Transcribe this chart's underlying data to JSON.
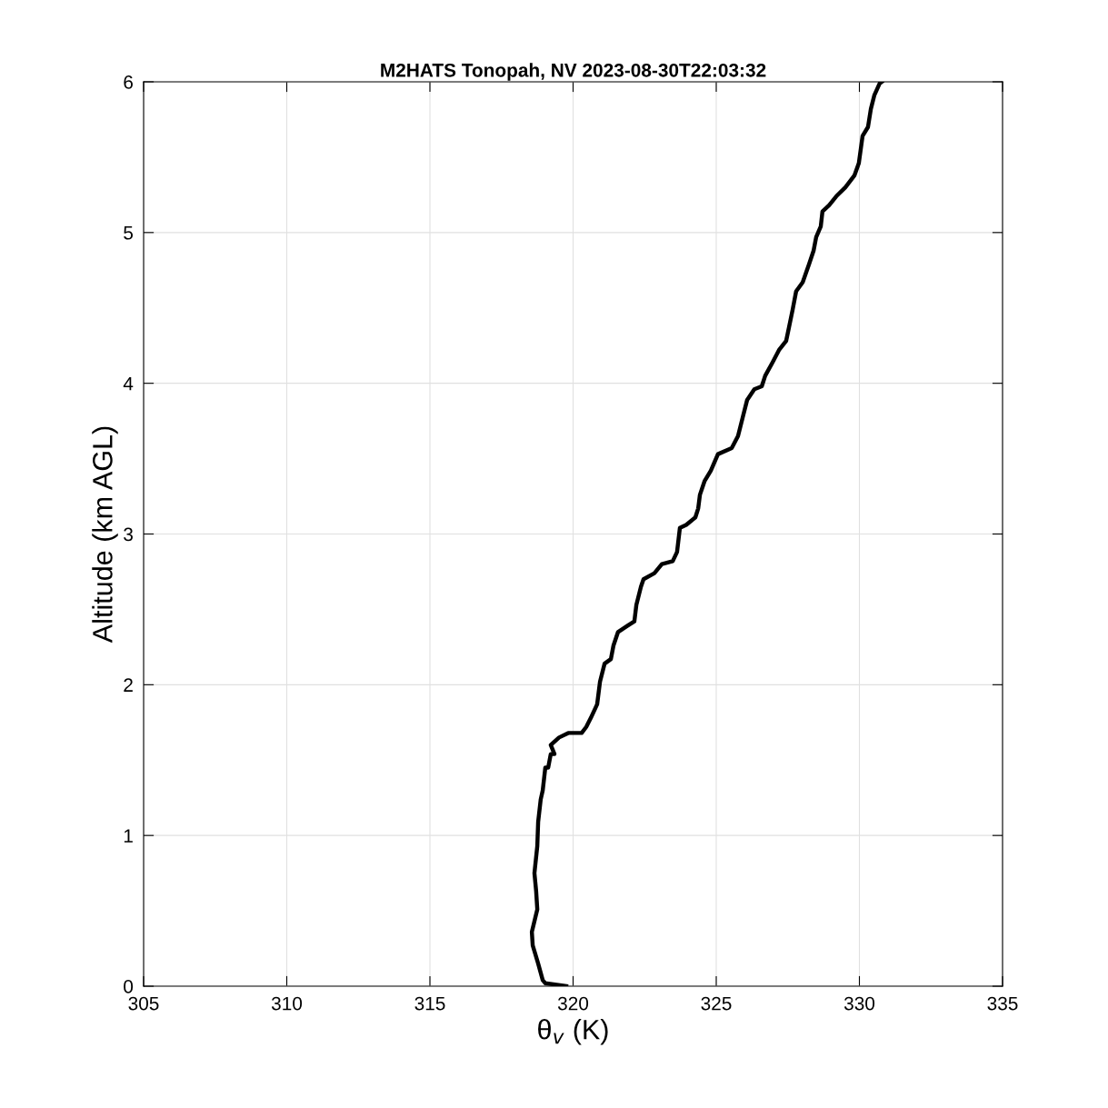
{
  "chart_data": {
    "type": "line",
    "title": "M2HATS Tonopah, NV 2023-08-30T22:03:32",
    "xlabel": "θ$_{v}$ (K)",
    "ylabel": "Altitude (km AGL)",
    "xlim": [
      305,
      335
    ],
    "xticks": [
      305,
      310,
      315,
      320,
      325,
      330,
      335
    ],
    "ylim": [
      0,
      6
    ],
    "yticks": [
      0,
      1,
      2,
      3,
      4,
      5,
      6
    ],
    "grid": true,
    "legend": false,
    "marker": "none",
    "line_style": "solid",
    "series": [
      {
        "color": "#000000",
        "x": [
          319.76,
          319.03,
          318.94,
          318.78,
          318.59,
          318.56,
          318.75,
          318.71,
          318.65,
          318.75,
          318.78,
          318.87,
          318.94,
          319.03,
          319.13,
          319.22,
          319.35,
          319.22,
          319.51,
          319.83,
          320.3,
          320.46,
          320.62,
          320.84,
          320.94,
          321.1,
          321.32,
          321.41,
          321.57,
          321.89,
          322.14,
          322.21,
          322.37,
          322.46,
          322.84,
          323.1,
          323.48,
          323.63,
          323.73,
          323.95,
          324.27,
          324.37,
          324.43,
          324.59,
          324.81,
          325.06,
          325.54,
          325.76,
          325.92,
          326.08,
          326.33,
          326.59,
          326.71,
          326.97,
          327.19,
          327.44,
          327.54,
          327.67,
          327.79,
          328.02,
          328.24,
          328.4,
          328.49,
          328.65,
          328.71,
          328.94,
          329.19,
          329.51,
          329.83,
          329.98,
          330.11,
          330.3,
          330.4,
          330.52,
          330.71,
          330.78
        ],
        "values": [
          0,
          0.02,
          0.04,
          0.15,
          0.27,
          0.36,
          0.51,
          0.63,
          0.75,
          0.93,
          1.09,
          1.24,
          1.3,
          1.45,
          1.45,
          1.54,
          1.54,
          1.6,
          1.65,
          1.68,
          1.68,
          1.72,
          1.78,
          1.87,
          2.02,
          2.14,
          2.17,
          2.26,
          2.35,
          2.39,
          2.42,
          2.53,
          2.65,
          2.7,
          2.74,
          2.8,
          2.82,
          2.88,
          3.04,
          3.06,
          3.11,
          3.17,
          3.26,
          3.35,
          3.42,
          3.53,
          3.57,
          3.65,
          3.77,
          3.89,
          3.96,
          3.98,
          4.05,
          4.14,
          4.22,
          4.28,
          4.37,
          4.49,
          4.61,
          4.67,
          4.79,
          4.88,
          4.97,
          5.04,
          5.14,
          5.18,
          5.24,
          5.3,
          5.38,
          5.46,
          5.64,
          5.7,
          5.82,
          5.91,
          5.99,
          6
        ]
      }
    ]
  }
}
